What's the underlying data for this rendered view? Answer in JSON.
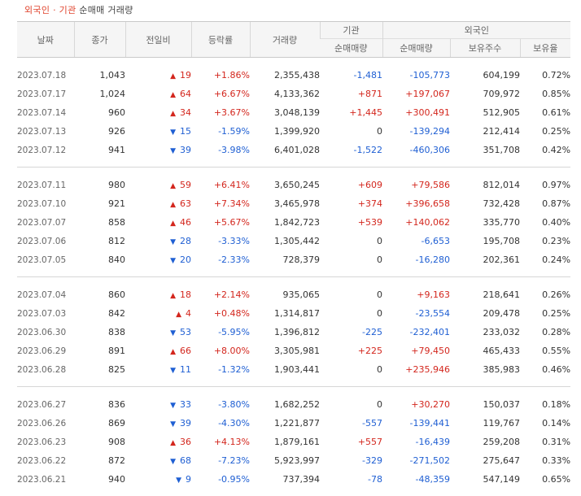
{
  "title": {
    "foreign": "외국인",
    "sep": "·",
    "inst": "기관",
    "rest": "순매매 거래량"
  },
  "headers": {
    "date": "날짜",
    "close": "종가",
    "change": "전일비",
    "rate": "등락률",
    "volume": "거래량",
    "inst_group": "기관",
    "foreign_group": "외국인",
    "inst_net": "순매매량",
    "foreign_net": "순매매량",
    "holdings": "보유주수",
    "ratio": "보유율"
  },
  "colors": {
    "up": "#d3261d",
    "down": "#1f5fd3",
    "title_accent": "#e0432d",
    "header_bg": "#f5f5f5"
  },
  "rows": [
    [
      {
        "date": "2023.07.18",
        "close": "1,043",
        "dir": "up",
        "change": "19",
        "rate": "+1.86%",
        "volume": "2,355,438",
        "inst": "-1,481",
        "foreign": "-105,773",
        "holdings": "604,199",
        "ratio": "0.72%"
      },
      {
        "date": "2023.07.17",
        "close": "1,024",
        "dir": "up",
        "change": "64",
        "rate": "+6.67%",
        "volume": "4,133,362",
        "inst": "+871",
        "foreign": "+197,067",
        "holdings": "709,972",
        "ratio": "0.85%"
      },
      {
        "date": "2023.07.14",
        "close": "960",
        "dir": "up",
        "change": "34",
        "rate": "+3.67%",
        "volume": "3,048,139",
        "inst": "+1,445",
        "foreign": "+300,491",
        "holdings": "512,905",
        "ratio": "0.61%"
      },
      {
        "date": "2023.07.13",
        "close": "926",
        "dir": "down",
        "change": "15",
        "rate": "-1.59%",
        "volume": "1,399,920",
        "inst": "0",
        "foreign": "-139,294",
        "holdings": "212,414",
        "ratio": "0.25%"
      },
      {
        "date": "2023.07.12",
        "close": "941",
        "dir": "down",
        "change": "39",
        "rate": "-3.98%",
        "volume": "6,401,028",
        "inst": "-1,522",
        "foreign": "-460,306",
        "holdings": "351,708",
        "ratio": "0.42%"
      }
    ],
    [
      {
        "date": "2023.07.11",
        "close": "980",
        "dir": "up",
        "change": "59",
        "rate": "+6.41%",
        "volume": "3,650,245",
        "inst": "+609",
        "foreign": "+79,586",
        "holdings": "812,014",
        "ratio": "0.97%"
      },
      {
        "date": "2023.07.10",
        "close": "921",
        "dir": "up",
        "change": "63",
        "rate": "+7.34%",
        "volume": "3,465,978",
        "inst": "+374",
        "foreign": "+396,658",
        "holdings": "732,428",
        "ratio": "0.87%"
      },
      {
        "date": "2023.07.07",
        "close": "858",
        "dir": "up",
        "change": "46",
        "rate": "+5.67%",
        "volume": "1,842,723",
        "inst": "+539",
        "foreign": "+140,062",
        "holdings": "335,770",
        "ratio": "0.40%"
      },
      {
        "date": "2023.07.06",
        "close": "812",
        "dir": "down",
        "change": "28",
        "rate": "-3.33%",
        "volume": "1,305,442",
        "inst": "0",
        "foreign": "-6,653",
        "holdings": "195,708",
        "ratio": "0.23%"
      },
      {
        "date": "2023.07.05",
        "close": "840",
        "dir": "down",
        "change": "20",
        "rate": "-2.33%",
        "volume": "728,379",
        "inst": "0",
        "foreign": "-16,280",
        "holdings": "202,361",
        "ratio": "0.24%"
      }
    ],
    [
      {
        "date": "2023.07.04",
        "close": "860",
        "dir": "up",
        "change": "18",
        "rate": "+2.14%",
        "volume": "935,065",
        "inst": "0",
        "foreign": "+9,163",
        "holdings": "218,641",
        "ratio": "0.26%"
      },
      {
        "date": "2023.07.03",
        "close": "842",
        "dir": "up",
        "change": "4",
        "rate": "+0.48%",
        "volume": "1,314,817",
        "inst": "0",
        "foreign": "-23,554",
        "holdings": "209,478",
        "ratio": "0.25%"
      },
      {
        "date": "2023.06.30",
        "close": "838",
        "dir": "down",
        "change": "53",
        "rate": "-5.95%",
        "volume": "1,396,812",
        "inst": "-225",
        "foreign": "-232,401",
        "holdings": "233,032",
        "ratio": "0.28%"
      },
      {
        "date": "2023.06.29",
        "close": "891",
        "dir": "up",
        "change": "66",
        "rate": "+8.00%",
        "volume": "3,305,981",
        "inst": "+225",
        "foreign": "+79,450",
        "holdings": "465,433",
        "ratio": "0.55%"
      },
      {
        "date": "2023.06.28",
        "close": "825",
        "dir": "down",
        "change": "11",
        "rate": "-1.32%",
        "volume": "1,903,441",
        "inst": "0",
        "foreign": "+235,946",
        "holdings": "385,983",
        "ratio": "0.46%"
      }
    ],
    [
      {
        "date": "2023.06.27",
        "close": "836",
        "dir": "down",
        "change": "33",
        "rate": "-3.80%",
        "volume": "1,682,252",
        "inst": "0",
        "foreign": "+30,270",
        "holdings": "150,037",
        "ratio": "0.18%"
      },
      {
        "date": "2023.06.26",
        "close": "869",
        "dir": "down",
        "change": "39",
        "rate": "-4.30%",
        "volume": "1,221,877",
        "inst": "-557",
        "foreign": "-139,441",
        "holdings": "119,767",
        "ratio": "0.14%"
      },
      {
        "date": "2023.06.23",
        "close": "908",
        "dir": "up",
        "change": "36",
        "rate": "+4.13%",
        "volume": "1,879,161",
        "inst": "+557",
        "foreign": "-16,439",
        "holdings": "259,208",
        "ratio": "0.31%"
      },
      {
        "date": "2023.06.22",
        "close": "872",
        "dir": "down",
        "change": "68",
        "rate": "-7.23%",
        "volume": "5,923,997",
        "inst": "-329",
        "foreign": "-271,502",
        "holdings": "275,647",
        "ratio": "0.33%"
      },
      {
        "date": "2023.06.21",
        "close": "940",
        "dir": "down",
        "change": "9",
        "rate": "-0.95%",
        "volume": "737,394",
        "inst": "-78",
        "foreign": "-48,359",
        "holdings": "547,149",
        "ratio": "0.65%"
      }
    ]
  ]
}
